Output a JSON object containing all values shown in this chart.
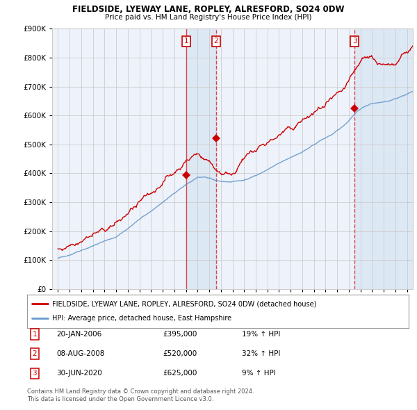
{
  "title": "FIELDSIDE, LYEWAY LANE, ROPLEY, ALRESFORD, SO24 0DW",
  "subtitle": "Price paid vs. HM Land Registry's House Price Index (HPI)",
  "legend_label1": "FIELDSIDE, LYEWAY LANE, ROPLEY, ALRESFORD, SO24 0DW (detached house)",
  "legend_label2": "HPI: Average price, detached house, East Hampshire",
  "transactions": [
    {
      "num": 1,
      "date": "20-JAN-2006",
      "price": "£395,000",
      "pct": "19% ↑ HPI",
      "x_year": 2006.05,
      "y_val": 395000,
      "linestyle": "-"
    },
    {
      "num": 2,
      "date": "08-AUG-2008",
      "price": "£520,000",
      "pct": "32% ↑ HPI",
      "x_year": 2008.6,
      "y_val": 520000,
      "linestyle": "--"
    },
    {
      "num": 3,
      "date": "30-JUN-2020",
      "price": "£625,000",
      "pct": "9% ↑ HPI",
      "x_year": 2020.5,
      "y_val": 625000,
      "linestyle": "--"
    }
  ],
  "footnote1": "Contains HM Land Registry data © Crown copyright and database right 2024.",
  "footnote2": "This data is licensed under the Open Government Licence v3.0.",
  "red_color": "#cc0000",
  "blue_color": "#6699cc",
  "vline_color": "#dd4444",
  "shade_color": "#dde8f5",
  "grid_color": "#cccccc",
  "bg_color": "#ffffff",
  "plot_bg": "#eef2fa",
  "ylim_min": 0,
  "ylim_max": 900000,
  "xlim_min": 1994.5,
  "xlim_max": 2025.5,
  "xtick_start": 1995,
  "xtick_end": 2025
}
